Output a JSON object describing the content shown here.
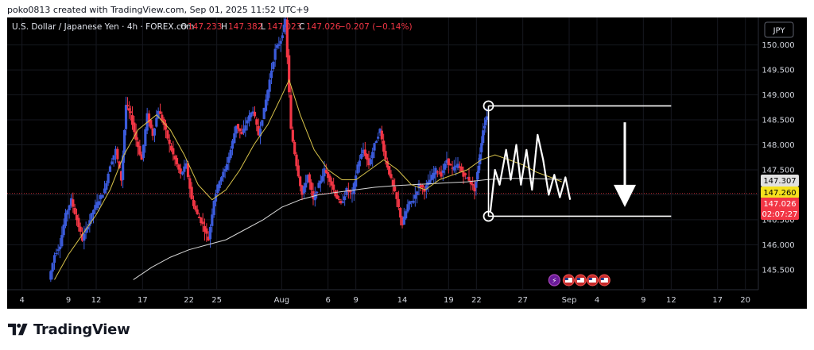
{
  "header": {
    "created_by": "poko0813 created with TradingView.com, Sep 01, 2025 11:52 UTC+9"
  },
  "footer": {
    "brand": "TradingView"
  },
  "currency_badge": "JPY",
  "colors": {
    "background": "#000000",
    "up": "#3b5bdb",
    "down": "#f23645",
    "ma_fast": "#d8c34a",
    "ma_slow": "#d6d6d6",
    "drawing": "#ffffff",
    "label_last": "#f23645",
    "label_ma_fast": "#f5e11d",
    "label_ma_slow": "#e0e0e0"
  },
  "legend": {
    "symbol": "U.S. Dollar / Japanese Yen · 4h · FOREX.com",
    "o_label": "O",
    "o_value": "147.233",
    "h_label": "H",
    "h_value": "147.382",
    "l_label": "L",
    "l_value": "147.023",
    "c_label": "C",
    "c_value": "147.026",
    "change": "−0.207 (−0.14%)"
  },
  "price_labels": {
    "ma_slow": "147.307",
    "ma_fast": "147.260",
    "last": "147.026",
    "countdown": "02:07:27"
  },
  "chart_data": {
    "type": "candlestick",
    "instrument": "U.S. Dollar / Japanese Yen",
    "timeframe": "4h",
    "source": "FOREX.com",
    "y_ticks": [
      "145.500",
      "146.000",
      "146.500",
      "147.000",
      "147.500",
      "148.000",
      "148.500",
      "149.000",
      "149.500",
      "150.000"
    ],
    "ylim": [
      145.1,
      150.55
    ],
    "x_ticks": [
      {
        "label": "4",
        "day": 4
      },
      {
        "label": "9",
        "day": 9
      },
      {
        "label": "12",
        "day": 12
      },
      {
        "label": "17",
        "day": 17
      },
      {
        "label": "22",
        "day": 22
      },
      {
        "label": "25",
        "day": 25
      },
      {
        "label": "Aug",
        "day": 32
      },
      {
        "label": "6",
        "day": 37
      },
      {
        "label": "9",
        "day": 40
      },
      {
        "label": "14",
        "day": 45
      },
      {
        "label": "19",
        "day": 50
      },
      {
        "label": "22",
        "day": 53
      },
      {
        "label": "27",
        "day": 58
      },
      {
        "label": "Sep",
        "day": 63
      },
      {
        "label": "4",
        "day": 66
      },
      {
        "label": "9",
        "day": 71
      },
      {
        "label": "12",
        "day": 74
      },
      {
        "label": "17",
        "day": 79
      },
      {
        "label": "20",
        "day": 82
      }
    ],
    "x_range_days": [
      2.4,
      83.4
    ],
    "close_path": [
      [
        7.0,
        145.3
      ],
      [
        7.6,
        145.8
      ],
      [
        8.2,
        146.0
      ],
      [
        8.8,
        146.6
      ],
      [
        9.4,
        146.9
      ],
      [
        10.0,
        146.5
      ],
      [
        10.6,
        146.1
      ],
      [
        11.2,
        146.4
      ],
      [
        11.8,
        146.7
      ],
      [
        12.4,
        146.9
      ],
      [
        13.0,
        147.1
      ],
      [
        13.6,
        147.6
      ],
      [
        14.2,
        147.9
      ],
      [
        14.8,
        147.3
      ],
      [
        15.3,
        148.8
      ],
      [
        15.8,
        148.6
      ],
      [
        16.4,
        148.1
      ],
      [
        17.0,
        147.7
      ],
      [
        17.6,
        148.6
      ],
      [
        18.2,
        148.2
      ],
      [
        18.8,
        148.7
      ],
      [
        19.4,
        148.4
      ],
      [
        20.0,
        148.0
      ],
      [
        20.6,
        147.7
      ],
      [
        21.2,
        147.4
      ],
      [
        21.8,
        147.6
      ],
      [
        22.4,
        146.9
      ],
      [
        23.0,
        146.6
      ],
      [
        23.6,
        146.4
      ],
      [
        24.2,
        146.1
      ],
      [
        24.8,
        146.9
      ],
      [
        25.4,
        147.3
      ],
      [
        26.0,
        147.5
      ],
      [
        26.6,
        147.9
      ],
      [
        27.2,
        148.4
      ],
      [
        27.8,
        148.2
      ],
      [
        28.4,
        148.5
      ],
      [
        29.0,
        148.7
      ],
      [
        29.6,
        148.2
      ],
      [
        30.2,
        148.7
      ],
      [
        30.8,
        149.3
      ],
      [
        31.4,
        149.9
      ],
      [
        32.0,
        150.1
      ],
      [
        32.5,
        150.5
      ],
      [
        33.1,
        148.3
      ],
      [
        33.7,
        147.6
      ],
      [
        34.3,
        147.0
      ],
      [
        34.9,
        147.4
      ],
      [
        35.5,
        146.9
      ],
      [
        36.1,
        147.2
      ],
      [
        36.7,
        147.5
      ],
      [
        37.3,
        147.3
      ],
      [
        37.9,
        147.0
      ],
      [
        38.5,
        146.8
      ],
      [
        39.1,
        147.1
      ],
      [
        39.7,
        147.0
      ],
      [
        40.3,
        147.6
      ],
      [
        40.9,
        147.9
      ],
      [
        41.5,
        147.6
      ],
      [
        42.1,
        148.0
      ],
      [
        42.7,
        148.3
      ],
      [
        43.3,
        147.7
      ],
      [
        43.9,
        147.3
      ],
      [
        44.5,
        146.9
      ],
      [
        45.1,
        146.4
      ],
      [
        45.7,
        146.8
      ],
      [
        46.3,
        146.9
      ],
      [
        46.9,
        147.2
      ],
      [
        47.5,
        147.1
      ],
      [
        48.1,
        147.3
      ],
      [
        48.7,
        147.5
      ],
      [
        49.3,
        147.4
      ],
      [
        49.9,
        147.7
      ],
      [
        50.5,
        147.5
      ],
      [
        51.1,
        147.6
      ],
      [
        51.7,
        147.4
      ],
      [
        52.3,
        147.3
      ],
      [
        52.9,
        147.1
      ],
      [
        53.3,
        147.6
      ],
      [
        53.8,
        148.3
      ],
      [
        54.2,
        148.6
      ]
    ],
    "ma_fast_path": [
      [
        7.5,
        145.3
      ],
      [
        9,
        145.8
      ],
      [
        10.5,
        146.2
      ],
      [
        12,
        146.6
      ],
      [
        13.5,
        147.1
      ],
      [
        15,
        147.8
      ],
      [
        16.5,
        148.3
      ],
      [
        18.5,
        148.6
      ],
      [
        20,
        148.3
      ],
      [
        21.5,
        147.8
      ],
      [
        23,
        147.2
      ],
      [
        24.5,
        146.9
      ],
      [
        26,
        147.1
      ],
      [
        27.5,
        147.5
      ],
      [
        29,
        148.0
      ],
      [
        30.5,
        148.4
      ],
      [
        31.8,
        148.9
      ],
      [
        32.8,
        149.3
      ],
      [
        34,
        148.6
      ],
      [
        35.5,
        147.9
      ],
      [
        37,
        147.5
      ],
      [
        38.5,
        147.3
      ],
      [
        40,
        147.3
      ],
      [
        41.5,
        147.5
      ],
      [
        43,
        147.7
      ],
      [
        44.5,
        147.5
      ],
      [
        46,
        147.2
      ],
      [
        47.5,
        147.1
      ],
      [
        49,
        147.3
      ],
      [
        50.5,
        147.4
      ],
      [
        52,
        147.5
      ],
      [
        53.5,
        147.7
      ],
      [
        55,
        147.8
      ],
      [
        56.5,
        147.7
      ],
      [
        58,
        147.6
      ],
      [
        59.5,
        147.45
      ],
      [
        61,
        147.35
      ],
      [
        62.2,
        147.26
      ]
    ],
    "ma_slow_path": [
      [
        16,
        145.3
      ],
      [
        18,
        145.55
      ],
      [
        20,
        145.75
      ],
      [
        22,
        145.9
      ],
      [
        24,
        146.0
      ],
      [
        26,
        146.1
      ],
      [
        28,
        146.3
      ],
      [
        30,
        146.5
      ],
      [
        32,
        146.75
      ],
      [
        34,
        146.9
      ],
      [
        36,
        147.0
      ],
      [
        38,
        147.05
      ],
      [
        40,
        147.1
      ],
      [
        42,
        147.15
      ],
      [
        44,
        147.18
      ],
      [
        46,
        147.2
      ],
      [
        48,
        147.22
      ],
      [
        50,
        147.24
      ],
      [
        52,
        147.26
      ],
      [
        54,
        147.3
      ],
      [
        56,
        147.33
      ],
      [
        58,
        147.33
      ],
      [
        60,
        147.32
      ],
      [
        62.2,
        147.307
      ]
    ],
    "drawings": {
      "range_top": 148.78,
      "range_bottom": 146.57,
      "range_start_day": 54.3,
      "range_end_day": 74.0,
      "projection_zigzag": [
        [
          54.5,
          146.65
        ],
        [
          55.0,
          147.5
        ],
        [
          55.5,
          147.2
        ],
        [
          56.2,
          147.9
        ],
        [
          56.7,
          147.3
        ],
        [
          57.3,
          148.0
        ],
        [
          57.8,
          147.2
        ],
        [
          58.4,
          147.9
        ],
        [
          59.0,
          147.1
        ],
        [
          59.6,
          148.2
        ],
        [
          60.2,
          147.7
        ],
        [
          60.8,
          147.0
        ],
        [
          61.4,
          147.4
        ],
        [
          62.0,
          146.95
        ],
        [
          62.6,
          147.35
        ],
        [
          63.1,
          146.9
        ]
      ],
      "down_arrow": {
        "day": 69,
        "from": 148.45,
        "to": 146.85
      },
      "event_icons": 4
    }
  }
}
